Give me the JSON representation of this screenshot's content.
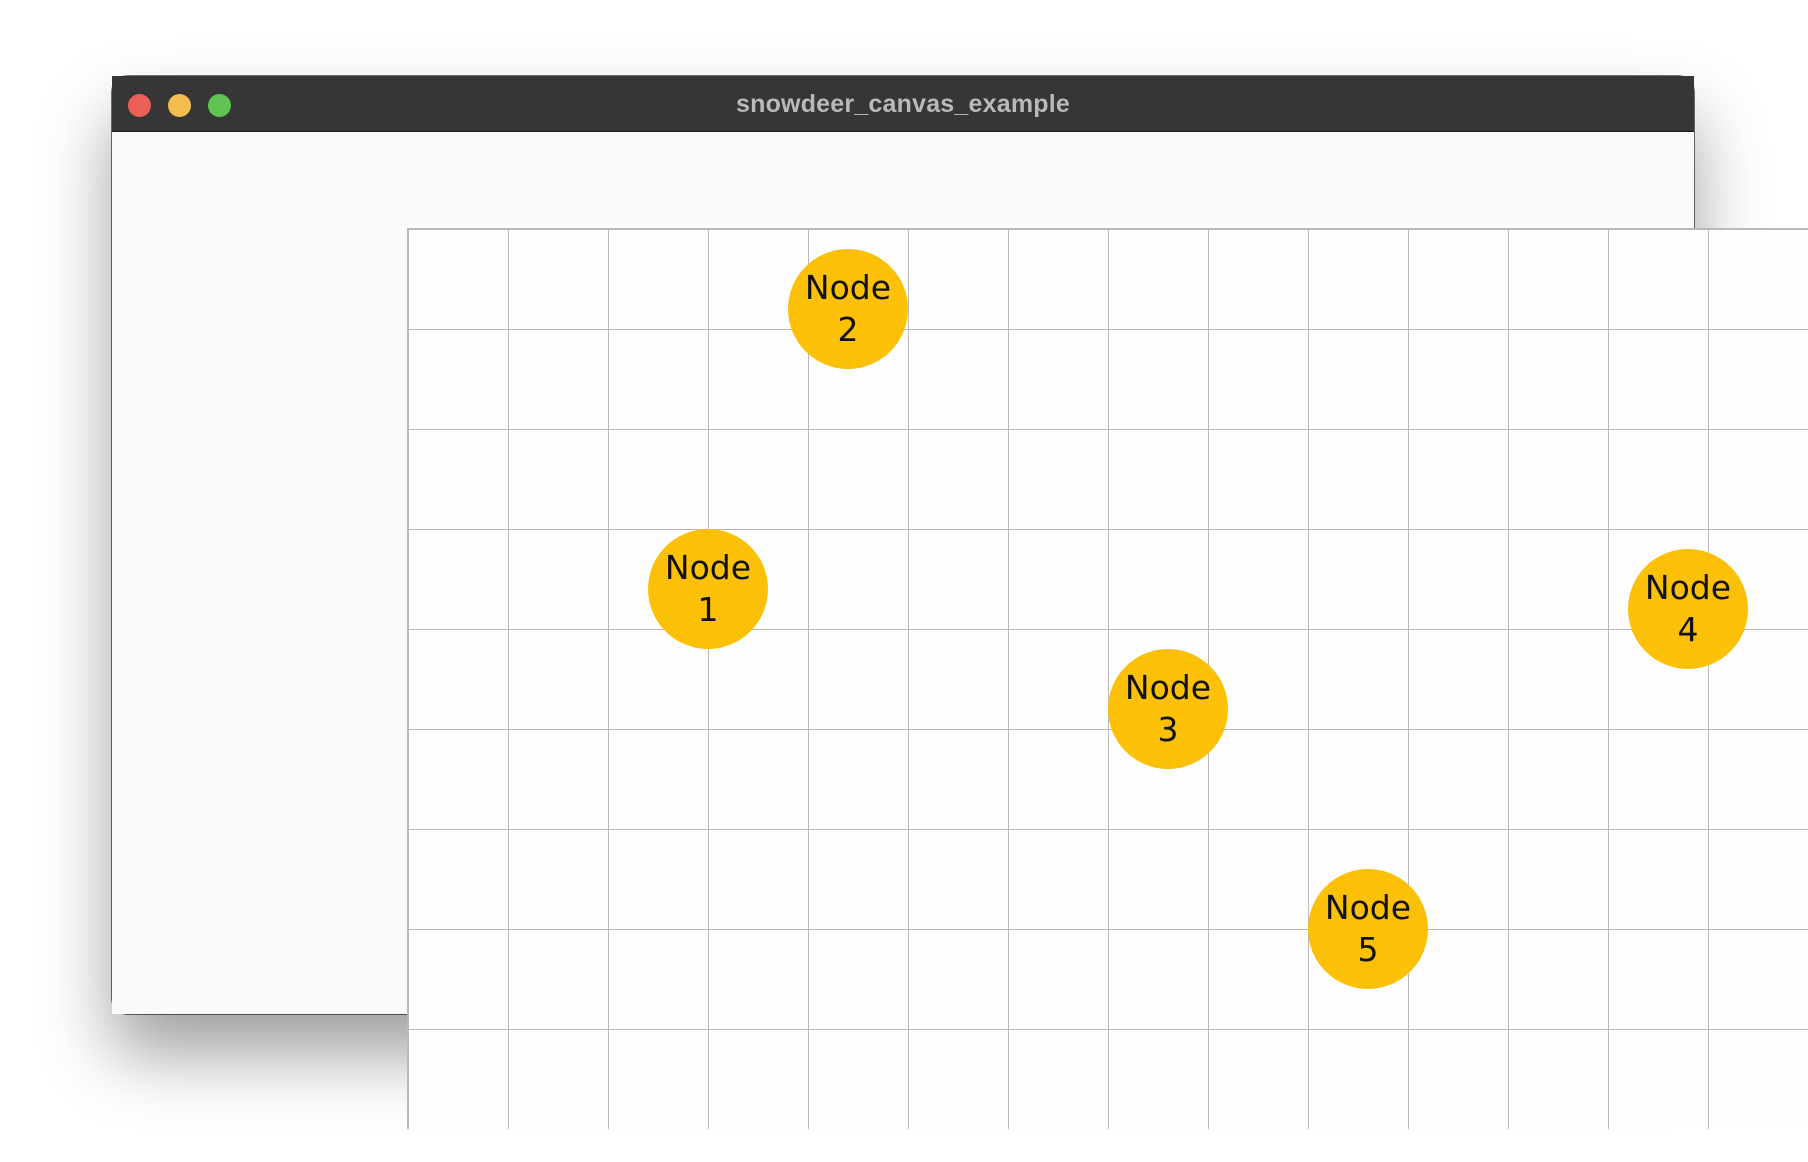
{
  "window": {
    "title": "snowdeer_canvas_example"
  },
  "canvas": {
    "grid_color": "#b9b9b9",
    "background": "#fefefe",
    "nodes": [
      {
        "id": "node-1",
        "label_line1": "Node",
        "label_line2": "1",
        "color": "#fcc007"
      },
      {
        "id": "node-2",
        "label_line1": "Node",
        "label_line2": "2",
        "color": "#fcc007"
      },
      {
        "id": "node-3",
        "label_line1": "Node",
        "label_line2": "3",
        "color": "#fcc007"
      },
      {
        "id": "node-4",
        "label_line1": "Node",
        "label_line2": "4",
        "color": "#fcc007"
      },
      {
        "id": "node-5",
        "label_line1": "Node",
        "label_line2": "5",
        "color": "#fcc007"
      }
    ]
  },
  "traffic_lights": {
    "close_color": "#ec5f57",
    "minimize_color": "#f4be4f",
    "maximize_color": "#5fc453"
  }
}
